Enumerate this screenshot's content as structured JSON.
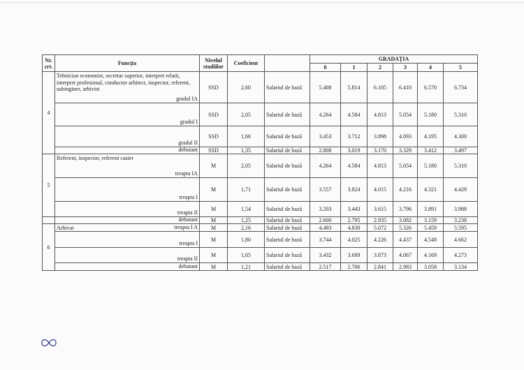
{
  "header": {
    "nr": "Nr. crt.",
    "functia": "Funcția",
    "nivel": "Nivelul studiilor",
    "coef": "Coeficient",
    "gradatia": "GRADAȚIA",
    "gradations": [
      "0",
      "1",
      "2",
      "3",
      "4",
      "5"
    ]
  },
  "groups": [
    {
      "nr": "4",
      "title": "Tehnician economist, secretar superior, interpret relatii, interpret profesional, conductor arhitect, inspector, referent, subinginer, arhivist",
      "rows": [
        {
          "grade": "gradul IA",
          "nivel": "SSD",
          "coef": "2,60",
          "label": "Salariul de bază",
          "values": [
            "5.408",
            "5.814",
            "6.105",
            "6.410",
            "6.570",
            "6.734"
          ]
        },
        {
          "grade": "gradul I",
          "nivel": "SSD",
          "coef": "2,05",
          "label": "Salariul de bază",
          "values": [
            "4.264",
            "4.584",
            "4.813",
            "5.054",
            "5.180",
            "5.310"
          ]
        },
        {
          "grade": "gradul II",
          "nivel": "SSD",
          "coef": "1,66",
          "label": "Salariul de bază",
          "values": [
            "3.453",
            "3.712",
            "3.898",
            "4.093",
            "4.195",
            "4.300"
          ]
        },
        {
          "grade": "debutant",
          "nivel": "SSD",
          "coef": "1,35",
          "label": "Salariul de bază",
          "values": [
            "2.808",
            "3.019",
            "3.170",
            "3.329",
            "3.412",
            "3.497"
          ]
        }
      ]
    },
    {
      "nr": "5",
      "title": "Referent, inspector, referent casier",
      "rows": [
        {
          "grade": "treapta IA",
          "nivel": "M",
          "coef": "2,05",
          "label": "Salariul de bază",
          "values": [
            "4.264",
            "4.584",
            "4.813",
            "5.054",
            "5.180",
            "5.310"
          ]
        },
        {
          "grade": "treapta I",
          "nivel": "M",
          "coef": "1,71",
          "label": "Salariul de bază",
          "values": [
            "3.557",
            "3.824",
            "4.015",
            "4.216",
            "4.321",
            "4.429"
          ]
        },
        {
          "grade": "treapta II",
          "nivel": "M",
          "coef": "1,54",
          "label": "Salariul de bază",
          "values": [
            "3.203",
            "3.443",
            "3.615",
            "3.796",
            "3.891",
            "3.988"
          ]
        },
        {
          "grade": "debutant",
          "nivel": "M",
          "coef": "1,25",
          "label": "Salariul de bază",
          "values": [
            "2.600",
            "2.795",
            "2.935",
            "3.082",
            "3.159",
            "3.238"
          ]
        }
      ]
    },
    {
      "nr": "6",
      "title": "Arhivar",
      "rows": [
        {
          "grade": "treapta I A",
          "nivel": "M",
          "coef": "2,16",
          "label": "Salariul de bază",
          "values": [
            "4.493",
            "4.830",
            "5.072",
            "5.326",
            "5.459",
            "5.595"
          ]
        },
        {
          "grade": "treapta I",
          "nivel": "M",
          "coef": "1,80",
          "label": "Salariul de bază",
          "values": [
            "3.744",
            "4.025",
            "4.226",
            "4.437",
            "4.548",
            "4.662"
          ]
        },
        {
          "grade": "treapta II",
          "nivel": "M",
          "coef": "1,65",
          "label": "Salariul de bază",
          "values": [
            "3.432",
            "3.689",
            "3.873",
            "4.067",
            "4.169",
            "4.273"
          ]
        },
        {
          "grade": "debutant",
          "nivel": "M",
          "coef": "1,21",
          "label": "Salariul de bază",
          "values": [
            "2.517",
            "2.706",
            "2.841",
            "2.983",
            "3.058",
            "3.134"
          ]
        }
      ]
    }
  ]
}
